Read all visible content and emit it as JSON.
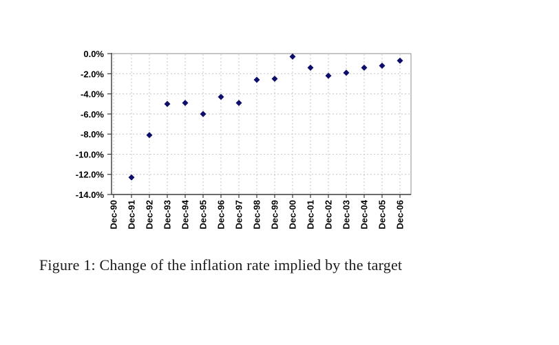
{
  "figure": {
    "caption": "Figure 1: Change of the inflation rate implied by the target"
  },
  "chart_data": {
    "type": "scatter",
    "title": "",
    "xlabel": "",
    "ylabel": "",
    "categories": [
      "Dec-90",
      "Dec-91",
      "Dec-92",
      "Dec-93",
      "Dec-94",
      "Dec-95",
      "Dec-96",
      "Dec-97",
      "Dec-98",
      "Dec-99",
      "Dec-00",
      "Dec-01",
      "Dec-02",
      "Dec-03",
      "Dec-04",
      "Dec-05",
      "Dec-06"
    ],
    "values": [
      null,
      -12.3,
      -8.1,
      -5.0,
      -4.9,
      -6.0,
      -4.3,
      -4.9,
      -2.6,
      -2.5,
      -0.3,
      -1.4,
      -2.2,
      -1.9,
      -1.4,
      -1.2,
      -0.7
    ],
    "ylim": [
      -14,
      0
    ],
    "ytick_step": 2,
    "ytick_labels": [
      "0.0%",
      "-2.0%",
      "-4.0%",
      "-6.0%",
      "-8.0%",
      "-10.0%",
      "-12.0%",
      "-14.0%"
    ],
    "grid": true,
    "gridline_style": "dashed",
    "legend_position": "none",
    "marker_shape": "diamond",
    "marker_color": "#0d0d6b",
    "gridline_color": "#c4c4c4",
    "axis_color": "#3a3a3a",
    "border_color": "#8c8c8c",
    "tick_label_color": "#000000"
  }
}
